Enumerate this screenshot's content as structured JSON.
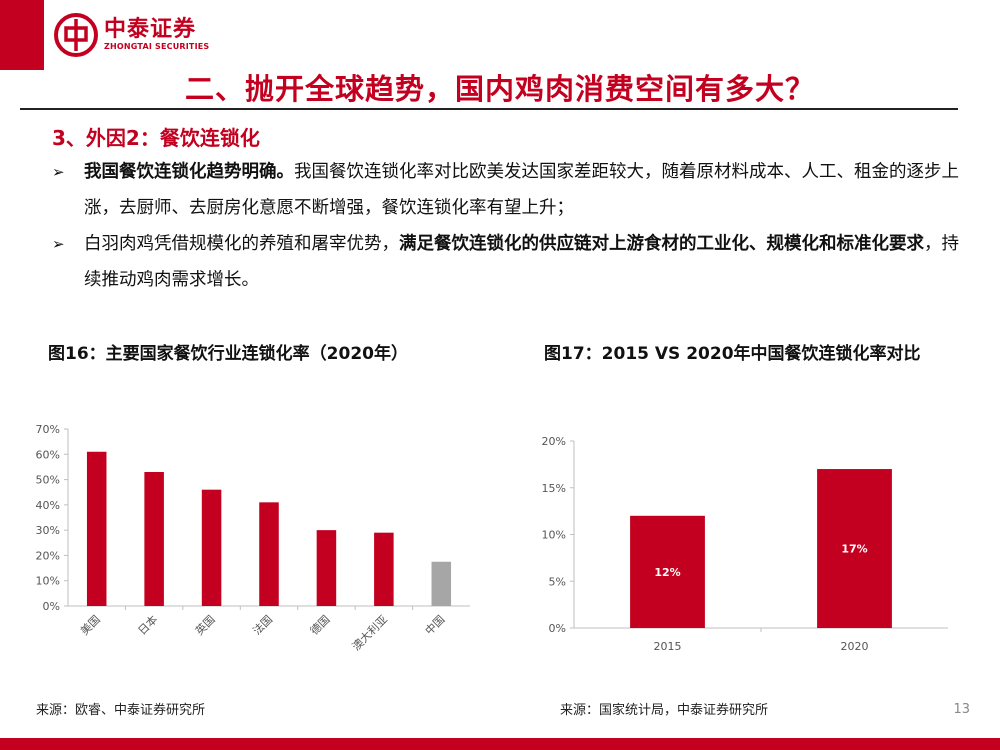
{
  "brand": {
    "name_cn": "中泰证券",
    "name_en": "ZHONGTAI SECURITIES",
    "color": "#c3001f"
  },
  "slide": {
    "title": "二、抛开全球趋势，国内鸡肉消费空间有多大？",
    "section": "3、外因2：餐饮连锁化",
    "page_number": "13"
  },
  "bullets": [
    {
      "marker": "➢",
      "bold": "我国餐饮连锁化趋势明确。",
      "rest": "我国餐饮连锁化率对比欧美发达国家差距较大，随着原材料成本、人工、租金的逐步上涨，去厨师、去厨房化意愿不断增强，餐饮连锁化率有望上升；"
    },
    {
      "marker": "➢",
      "pre": "白羽肉鸡凭借规模化的养殖和屠宰优势，",
      "bold": "满足餐饮连锁化的供应链对上游食材的工业化、规模化和标准化要求",
      "post": "，持续推动鸡肉需求增长。"
    }
  ],
  "figures": {
    "fig16": {
      "title": "图16：主要国家餐饮行业连锁化率（2020年）",
      "source": "来源：欧睿、中泰证券研究所"
    },
    "fig17": {
      "title": "图17：2015 VS 2020年中国餐饮连锁化率对比",
      "source": "来源：国家统计局，中泰证券研究所"
    }
  },
  "chart_data": [
    {
      "type": "bar",
      "categories": [
        "美国",
        "日本",
        "英国",
        "法国",
        "德国",
        "澳大利亚",
        "中国"
      ],
      "values": [
        61,
        53,
        46,
        41,
        30,
        29,
        17.5
      ],
      "bar_colors": [
        "#c3001f",
        "#c3001f",
        "#c3001f",
        "#c3001f",
        "#c3001f",
        "#c3001f",
        "#a6a6a6"
      ],
      "y_ticks": [
        "0%",
        "10%",
        "20%",
        "30%",
        "40%",
        "50%",
        "60%",
        "70%"
      ],
      "ylim": [
        0,
        70
      ],
      "grid": false,
      "xlabel": "",
      "ylabel": ""
    },
    {
      "type": "bar",
      "categories": [
        "2015",
        "2020"
      ],
      "values": [
        12,
        17
      ],
      "data_labels": [
        "12%",
        "17%"
      ],
      "bar_colors": [
        "#c3001f",
        "#c3001f"
      ],
      "y_ticks": [
        "0%",
        "5%",
        "10%",
        "15%",
        "20%"
      ],
      "ylim": [
        0,
        20
      ],
      "grid": false,
      "xlabel": "",
      "ylabel": ""
    }
  ]
}
